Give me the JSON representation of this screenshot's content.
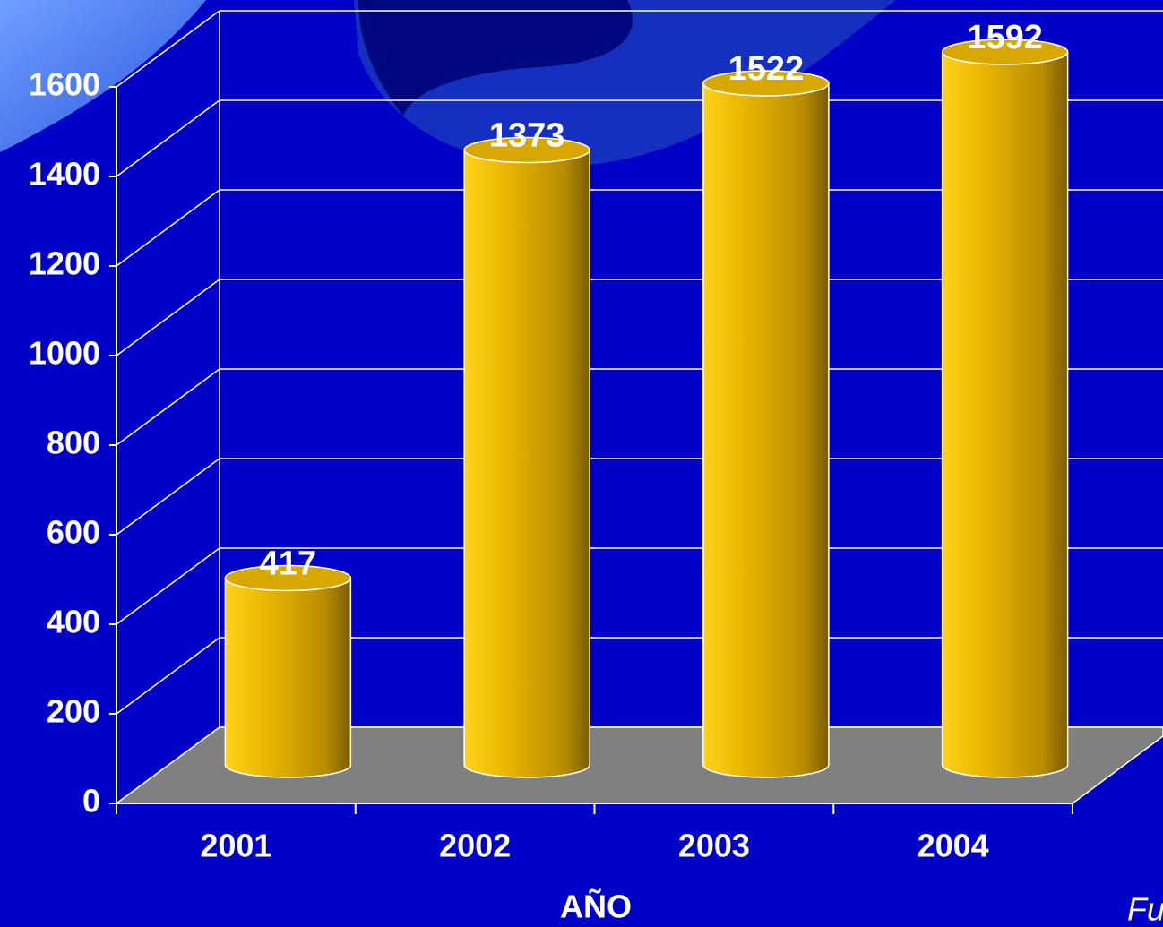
{
  "chart_data": {
    "type": "bar",
    "x_label": "AÑO",
    "annotation": "Fu",
    "categories": [
      "2001",
      "2002",
      "2003",
      "2004"
    ],
    "values": [
      417,
      1373,
      1522,
      1592
    ],
    "color": "#e8b400",
    "ylim": [
      0,
      1600
    ],
    "yticks": [
      0,
      200,
      400,
      600,
      800,
      1000,
      1200,
      1400,
      1600
    ],
    "grid": true
  }
}
